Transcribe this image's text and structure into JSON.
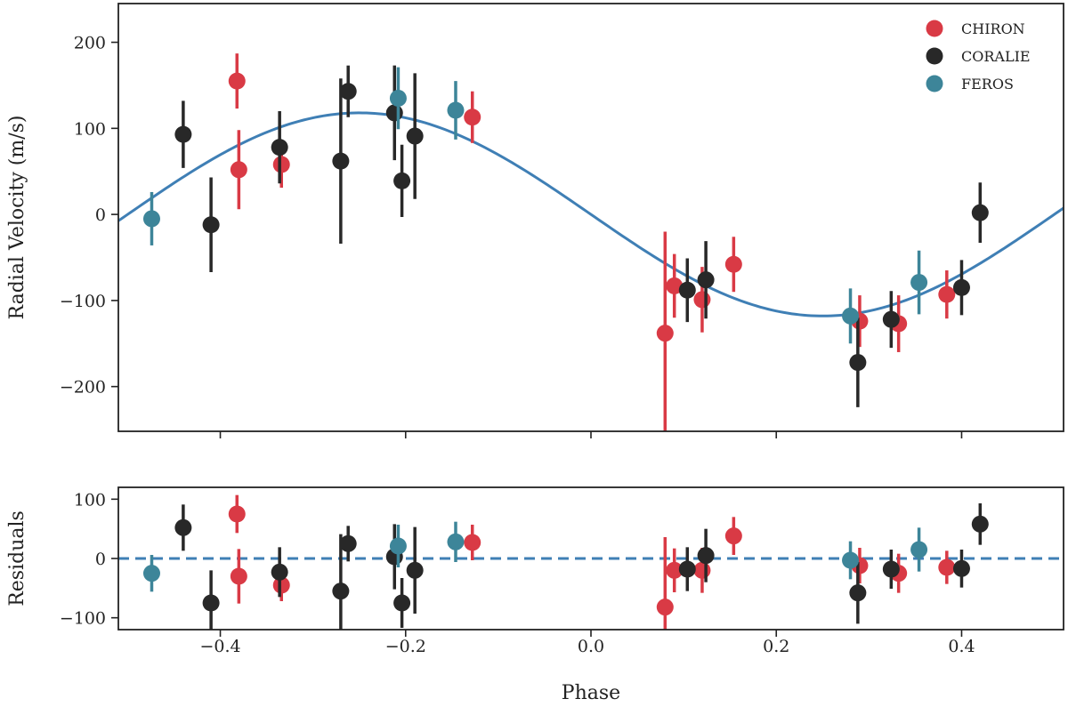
{
  "chart_data": {
    "type": "scatter",
    "xlabel": "Phase",
    "xlim": [
      -0.51,
      0.51
    ],
    "xticks": [
      -0.4,
      -0.2,
      0.0,
      0.2,
      0.4
    ],
    "xtick_labels": [
      "−0.4",
      "−0.2",
      "0.0",
      "0.2",
      "0.4"
    ],
    "legend_position": "top-right",
    "model": {
      "name": "Keplerian fit",
      "amplitude": 118,
      "peak_phase": -0.25,
      "color": "#3f7fb5"
    },
    "series_colors": {
      "CHIRON": "#d93a45",
      "CORALIE": "#282828",
      "FEROS": "#3d8599"
    },
    "panels": [
      {
        "name": "radial-velocity",
        "ylabel": "Radial Velocity (m/s)",
        "ylim": [
          -252,
          245
        ],
        "yticks": [
          -200,
          -100,
          0,
          100,
          200
        ],
        "ytick_labels": [
          "−200",
          "−100",
          "0",
          "100",
          "200"
        ],
        "show_model": true,
        "show_zero_line": false,
        "series": [
          {
            "name": "CHIRON",
            "points": [
              {
                "x": -0.382,
                "y": 155,
                "err": 32
              },
              {
                "x": -0.38,
                "y": 52,
                "err": 46
              },
              {
                "x": -0.334,
                "y": 58,
                "err": 27
              },
              {
                "x": -0.128,
                "y": 113,
                "err": 30
              },
              {
                "x": 0.08,
                "y": -138,
                "err": 118
              },
              {
                "x": 0.09,
                "y": -83,
                "err": 37
              },
              {
                "x": 0.12,
                "y": -99,
                "err": 38
              },
              {
                "x": 0.154,
                "y": -58,
                "err": 32
              },
              {
                "x": 0.29,
                "y": -124,
                "err": 30
              },
              {
                "x": 0.332,
                "y": -127,
                "err": 33
              },
              {
                "x": 0.384,
                "y": -93,
                "err": 28
              }
            ]
          },
          {
            "name": "CORALIE",
            "points": [
              {
                "x": -0.44,
                "y": 93,
                "err": 39
              },
              {
                "x": -0.41,
                "y": -12,
                "err": 55
              },
              {
                "x": -0.336,
                "y": 78,
                "err": 42
              },
              {
                "x": -0.27,
                "y": 62,
                "err": 96
              },
              {
                "x": -0.262,
                "y": 143,
                "err": 30
              },
              {
                "x": -0.212,
                "y": 118,
                "err": 55
              },
              {
                "x": -0.204,
                "y": 39,
                "err": 42
              },
              {
                "x": -0.19,
                "y": 91,
                "err": 73
              },
              {
                "x": 0.104,
                "y": -88,
                "err": 37
              },
              {
                "x": 0.124,
                "y": -76,
                "err": 45
              },
              {
                "x": 0.288,
                "y": -172,
                "err": 52
              },
              {
                "x": 0.324,
                "y": -122,
                "err": 33
              },
              {
                "x": 0.4,
                "y": -85,
                "err": 32
              },
              {
                "x": 0.42,
                "y": 2,
                "err": 35
              }
            ]
          },
          {
            "name": "FEROS",
            "points": [
              {
                "x": -0.474,
                "y": -5,
                "err": 31
              },
              {
                "x": -0.208,
                "y": 135,
                "err": 36
              },
              {
                "x": -0.146,
                "y": 121,
                "err": 34
              },
              {
                "x": 0.28,
                "y": -118,
                "err": 32
              },
              {
                "x": 0.354,
                "y": -79,
                "err": 37
              }
            ]
          }
        ]
      },
      {
        "name": "residuals",
        "ylabel": "Residuals",
        "ylim": [
          -120,
          120
        ],
        "yticks": [
          -100,
          0,
          100
        ],
        "ytick_labels": [
          "−100",
          "0",
          "100"
        ],
        "show_model": false,
        "show_zero_line": true,
        "series": [
          {
            "name": "CHIRON",
            "points": [
              {
                "x": -0.382,
                "y": 75,
                "err": 32
              },
              {
                "x": -0.38,
                "y": -30,
                "err": 46
              },
              {
                "x": -0.334,
                "y": -45,
                "err": 27
              },
              {
                "x": -0.128,
                "y": 27,
                "err": 30
              },
              {
                "x": 0.08,
                "y": -82,
                "err": 118
              },
              {
                "x": 0.09,
                "y": -20,
                "err": 37
              },
              {
                "x": 0.12,
                "y": -20,
                "err": 38
              },
              {
                "x": 0.154,
                "y": 38,
                "err": 32
              },
              {
                "x": 0.29,
                "y": -12,
                "err": 30
              },
              {
                "x": 0.332,
                "y": -25,
                "err": 33
              },
              {
                "x": 0.384,
                "y": -15,
                "err": 28
              }
            ]
          },
          {
            "name": "CORALIE",
            "points": [
              {
                "x": -0.44,
                "y": 52,
                "err": 39
              },
              {
                "x": -0.41,
                "y": -75,
                "err": 55
              },
              {
                "x": -0.336,
                "y": -23,
                "err": 42
              },
              {
                "x": -0.27,
                "y": -55,
                "err": 96
              },
              {
                "x": -0.262,
                "y": 25,
                "err": 30
              },
              {
                "x": -0.212,
                "y": 3,
                "err": 55
              },
              {
                "x": -0.204,
                "y": -75,
                "err": 42
              },
              {
                "x": -0.19,
                "y": -20,
                "err": 73
              },
              {
                "x": 0.104,
                "y": -18,
                "err": 37
              },
              {
                "x": 0.124,
                "y": 5,
                "err": 45
              },
              {
                "x": 0.288,
                "y": -58,
                "err": 52
              },
              {
                "x": 0.324,
                "y": -18,
                "err": 33
              },
              {
                "x": 0.4,
                "y": -17,
                "err": 32
              },
              {
                "x": 0.42,
                "y": 58,
                "err": 35
              }
            ]
          },
          {
            "name": "FEROS",
            "points": [
              {
                "x": -0.474,
                "y": -25,
                "err": 31
              },
              {
                "x": -0.208,
                "y": 21,
                "err": 36
              },
              {
                "x": -0.146,
                "y": 28,
                "err": 34
              },
              {
                "x": 0.28,
                "y": -3,
                "err": 32
              },
              {
                "x": 0.354,
                "y": 15,
                "err": 37
              }
            ]
          }
        ]
      }
    ],
    "legend": [
      {
        "label": "CHIRON",
        "color": "#d93a45"
      },
      {
        "label": "CORALIE",
        "color": "#282828"
      },
      {
        "label": "FEROS",
        "color": "#3d8599"
      }
    ]
  }
}
